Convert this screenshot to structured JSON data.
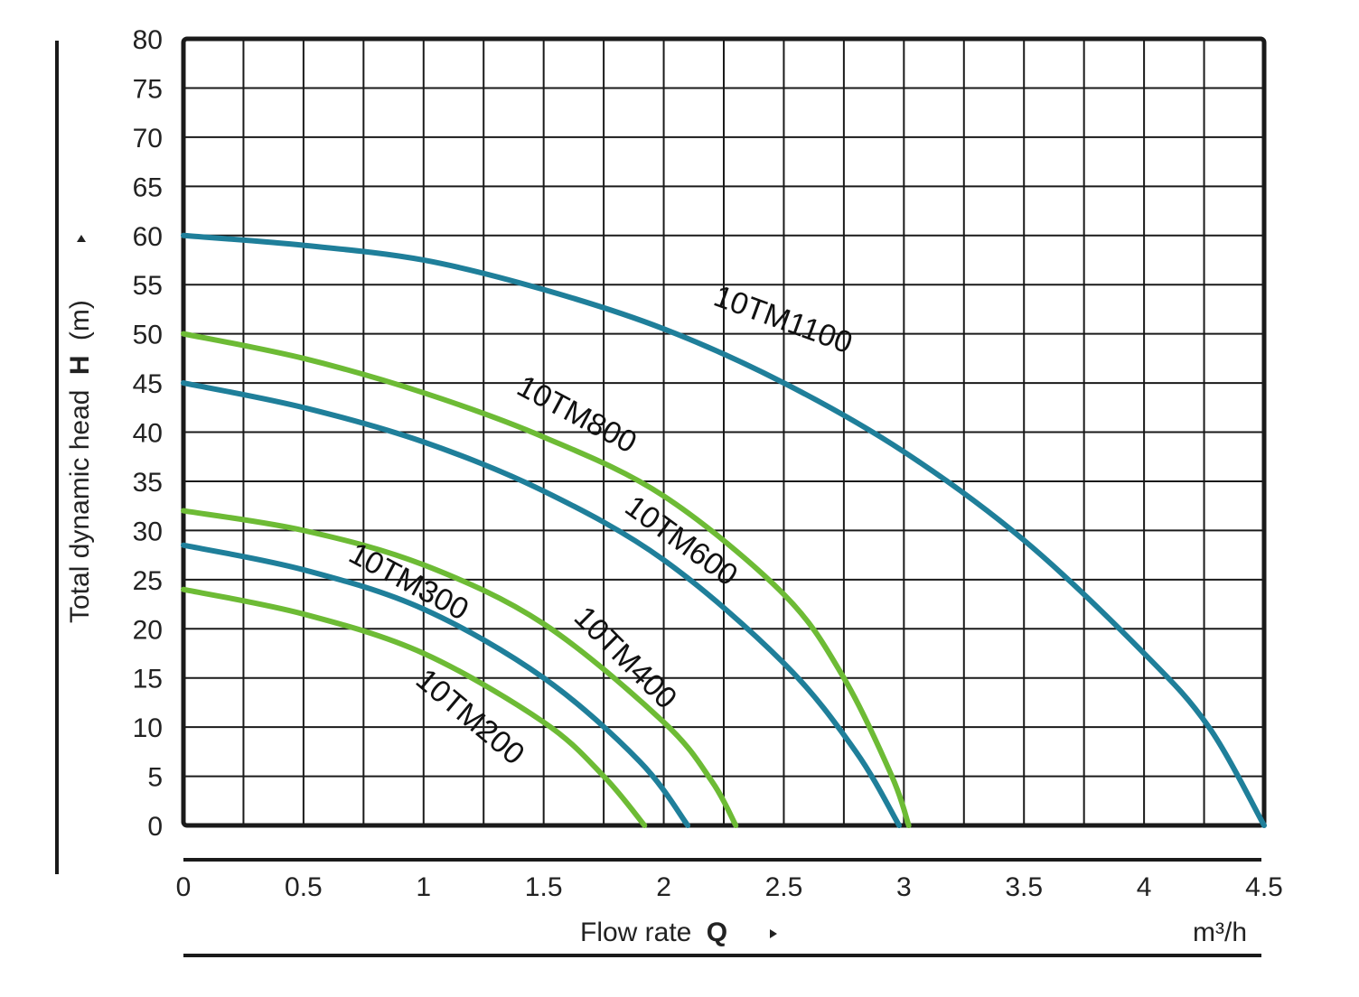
{
  "chart_data": {
    "type": "line",
    "xlabel": "Flow rate",
    "xlabel_symbol": "Q",
    "x_unit": "m³/h",
    "ylabel": "Total dynamic head",
    "ylabel_symbol": "H",
    "y_unit": "(m)",
    "xlim": [
      0,
      4.5
    ],
    "ylim": [
      0,
      80
    ],
    "x_ticks": [
      "0",
      "0.5",
      "1",
      "1.5",
      "2",
      "2.5",
      "3",
      "3.5",
      "4",
      "4.5"
    ],
    "y_ticks": [
      "0",
      "5",
      "10",
      "15",
      "20",
      "25",
      "30",
      "35",
      "40",
      "45",
      "50",
      "55",
      "60",
      "65",
      "70",
      "75",
      "80"
    ],
    "grid": true,
    "colors": {
      "blue": "#1f7f9a",
      "green": "#6dbb35",
      "grid": "#1a1a1a"
    },
    "series": [
      {
        "name": "10TM1100",
        "color": "#1f7f9a",
        "x": [
          0,
          0.5,
          1.0,
          1.5,
          2.0,
          2.5,
          3.0,
          3.5,
          4.0,
          4.27,
          4.5
        ],
        "y": [
          60,
          59,
          57.5,
          54.5,
          50.5,
          45,
          38,
          29,
          17.5,
          10,
          0
        ]
      },
      {
        "name": "10TM800",
        "color": "#6dbb35",
        "x": [
          0,
          0.5,
          1.0,
          1.5,
          2.0,
          2.5,
          2.75,
          2.95,
          3.02
        ],
        "y": [
          50,
          47.5,
          44,
          39.5,
          33.5,
          23.5,
          15,
          5,
          0
        ]
      },
      {
        "name": "10TM600",
        "color": "#1f7f9a",
        "x": [
          0,
          0.5,
          1.0,
          1.5,
          2.0,
          2.5,
          2.8,
          2.98
        ],
        "y": [
          45,
          42.5,
          39,
          34,
          27,
          16.5,
          7.5,
          0
        ]
      },
      {
        "name": "10TM400",
        "color": "#6dbb35",
        "x": [
          0,
          0.5,
          1.0,
          1.5,
          2.0,
          2.2,
          2.3
        ],
        "y": [
          32,
          30,
          26.5,
          20.5,
          10.5,
          4.5,
          0
        ]
      },
      {
        "name": "10TM300",
        "color": "#1f7f9a",
        "x": [
          0,
          0.5,
          1.0,
          1.5,
          1.9,
          2.1
        ],
        "y": [
          28.5,
          26,
          22,
          15,
          6.5,
          0
        ]
      },
      {
        "name": "10TM200",
        "color": "#6dbb35",
        "x": [
          0,
          0.5,
          1.0,
          1.5,
          1.75,
          1.92
        ],
        "y": [
          24,
          21.5,
          17.5,
          10.5,
          5,
          0
        ]
      }
    ],
    "labels": [
      {
        "text": "10TM1100",
        "x": 2.2,
        "y": 53,
        "angle": 20
      },
      {
        "text": "10TM800",
        "x": 1.38,
        "y": 44,
        "angle": 28
      },
      {
        "text": "10TM600",
        "x": 1.83,
        "y": 32,
        "angle": 36
      },
      {
        "text": "10TM400",
        "x": 1.62,
        "y": 21,
        "angle": 45
      },
      {
        "text": "10TM300",
        "x": 0.68,
        "y": 27,
        "angle": 28
      },
      {
        "text": "10TM200",
        "x": 0.96,
        "y": 14.5,
        "angle": 40
      }
    ]
  }
}
